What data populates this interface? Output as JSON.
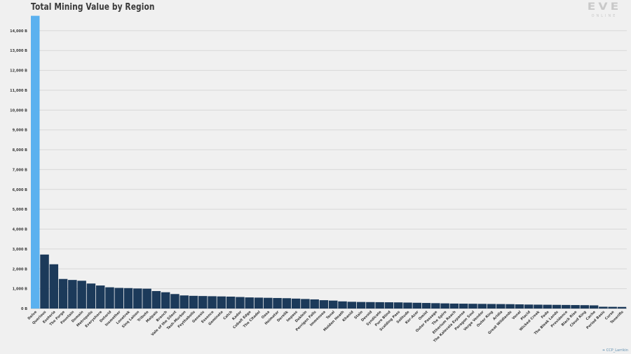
{
  "chart_data": {
    "type": "bar",
    "title": "Total Mining Value by Region",
    "xlabel": "",
    "ylabel": "",
    "ylim": [
      0,
      14700
    ],
    "yticks": [
      0,
      1000,
      2000,
      3000,
      4000,
      5000,
      6000,
      7000,
      8000,
      9000,
      10000,
      11000,
      12000,
      13000,
      14000
    ],
    "ytick_labels": [
      "0 B",
      "1,000 B",
      "2,000 B",
      "3,000 B",
      "4,000 B",
      "5,000 B",
      "6,000 B",
      "7,000 B",
      "8,000 B",
      "9,000 B",
      "10,000 B",
      "11,000 B",
      "12,000 B",
      "13,000 B",
      "14,000 B"
    ],
    "grid": true,
    "highlight_color": "#5bb1ef",
    "bar_color": "#1c3a5a",
    "categories": [
      "Delve",
      "Querious",
      "Esoteria",
      "The Forge",
      "Fountain",
      "Domain",
      "Metropolis",
      "Everyshore",
      "Detorid",
      "Insmother",
      "Lonetrek",
      "Sinq Laison",
      "Tribute",
      "Malpais",
      "Branch",
      "Vale of the Silent",
      "Tash-Murkon",
      "Feythabolis",
      "Genesis",
      "Essence",
      "Geminate",
      "Catch",
      "Kador",
      "Cobalt Edge",
      "The Citadel",
      "Oasa",
      "Heimatar",
      "Derelik",
      "Impass",
      "Deklein",
      "Perrigen Falls",
      "Immensea",
      "Tenal",
      "Molden Heath",
      "Khanid",
      "Stain",
      "Devoid",
      "Syndicate",
      "Pure Blind",
      "Scalding Pass",
      "Solitude",
      "Kor-Azor",
      "Omist",
      "Outer Passage",
      "The Spire",
      "Etherium Reach",
      "The Kalevala Expanse",
      "Paragon Soul",
      "Verge Vendor",
      "Outer Ring",
      "Aridia",
      "Great Wildlands",
      "Venal",
      "Placid",
      "Wicked Creek",
      "Fade",
      "The Bleak Lands",
      "Providence",
      "Black Rise",
      "Cloud Ring",
      "Cache",
      "Period Basis",
      "Curse",
      "Tenerifis"
    ],
    "values": [
      14750,
      2720,
      2230,
      1490,
      1440,
      1400,
      1260,
      1160,
      1070,
      1040,
      1030,
      1010,
      1000,
      880,
      820,
      730,
      660,
      640,
      630,
      620,
      610,
      600,
      580,
      560,
      550,
      540,
      530,
      520,
      500,
      480,
      460,
      420,
      400,
      360,
      340,
      330,
      325,
      320,
      315,
      310,
      300,
      290,
      280,
      270,
      260,
      250,
      245,
      240,
      235,
      230,
      225,
      220,
      210,
      200,
      195,
      190,
      185,
      180,
      175,
      170,
      160,
      90,
      85,
      80
    ]
  },
  "logo": {
    "main": "EVE",
    "sub": "ONLINE"
  },
  "credit": "❧ CCP_Larrikin"
}
